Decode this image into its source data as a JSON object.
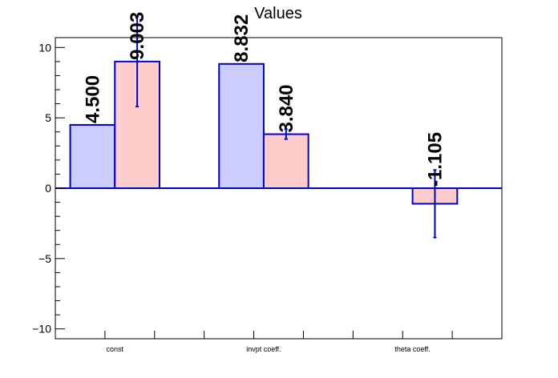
{
  "chart_data": {
    "type": "bar",
    "title": "Values",
    "categories": [
      "const",
      "invpt coeff.",
      "theta coeff."
    ],
    "series": [
      {
        "fill": "#ccccff",
        "values": [
          4.5,
          8.832,
          null
        ],
        "errors": [
          null,
          null,
          null
        ],
        "labels": [
          "4.500",
          "8.832",
          ""
        ]
      },
      {
        "fill": "#ffcccc",
        "values": [
          9.003,
          3.84,
          -1.105
        ],
        "errors": [
          3.2,
          0.35,
          2.4
        ],
        "labels": [
          "9.003",
          "3.840",
          "-1.105"
        ]
      }
    ],
    "ylim": [
      -10.7,
      10.7
    ],
    "yticks": [
      -10,
      -5,
      0,
      5,
      10
    ],
    "ytick_labels": [
      "−10",
      "−5",
      "0",
      "5",
      "10"
    ],
    "grid": false,
    "outline_color": "#0000cc",
    "frame_color": "#000000"
  }
}
